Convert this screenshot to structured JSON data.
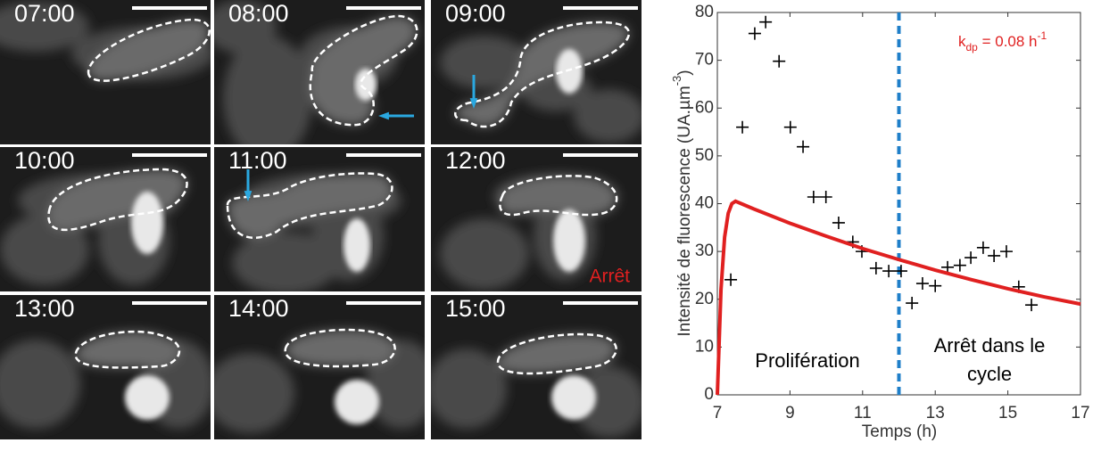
{
  "panels": [
    {
      "label": "07:00"
    },
    {
      "label": "08:00"
    },
    {
      "label": "09:00"
    },
    {
      "label": "10:00"
    },
    {
      "label": "11:00"
    },
    {
      "label": "12:00"
    },
    {
      "label": "13:00"
    },
    {
      "label": "14:00"
    },
    {
      "label": "15:00"
    }
  ],
  "panel_annotation": "Arrêt",
  "chart_data": {
    "type": "scatter",
    "xlabel": "Temps (h)",
    "ylabel": {
      "main": "Intensité de fluorescence (UA.µm",
      "sup": "-3",
      "end": ")"
    },
    "rate_label": {
      "base": "k",
      "sub": "dp",
      "mid": " = 0.08 h",
      "sup": "-1"
    },
    "annotations": [
      {
        "text": "Prolifération"
      },
      {
        "text": "Arrêt dans le"
      },
      {
        "text": "cycle"
      }
    ],
    "xlim": [
      7,
      17
    ],
    "xticks": [
      7,
      9,
      11,
      13,
      15,
      17
    ],
    "ylim": [
      0,
      80
    ],
    "yticks": [
      0,
      10,
      20,
      30,
      40,
      50,
      60,
      70,
      80
    ],
    "vline": 12,
    "vline_color": "#1f7fc9",
    "series": [
      {
        "kind": "marker",
        "color": "#000000",
        "x": [
          7.37,
          7.69,
          8.03,
          8.33,
          8.7,
          9.01,
          9.36,
          9.65,
          9.99,
          10.34,
          10.73,
          10.98,
          11.37,
          11.72,
          12.06,
          12.36,
          12.65,
          13.0,
          13.34,
          13.68,
          13.98,
          14.32,
          14.62,
          14.96,
          15.3,
          15.65
        ],
        "values": [
          24.1,
          56,
          75.6,
          78,
          69.8,
          56,
          51.9,
          41.4,
          41.4,
          36,
          32,
          30,
          26.5,
          25.9,
          25.9,
          19.2,
          23.3,
          22.8,
          26.7,
          27.1,
          28.7,
          30.8,
          29.1,
          30,
          22.6,
          18.8
        ]
      },
      {
        "kind": "line",
        "color": "#e02020",
        "x": [
          7,
          7.1,
          7.2,
          7.3,
          7.4,
          7.5,
          8,
          9,
          10,
          11,
          12,
          13,
          14,
          15,
          16,
          17
        ],
        "values": [
          0,
          22,
          33,
          38,
          40,
          40.5,
          38.9,
          35.9,
          33.2,
          30.6,
          28.3,
          26.1,
          24.1,
          22.2,
          20.5,
          19
        ]
      }
    ]
  }
}
